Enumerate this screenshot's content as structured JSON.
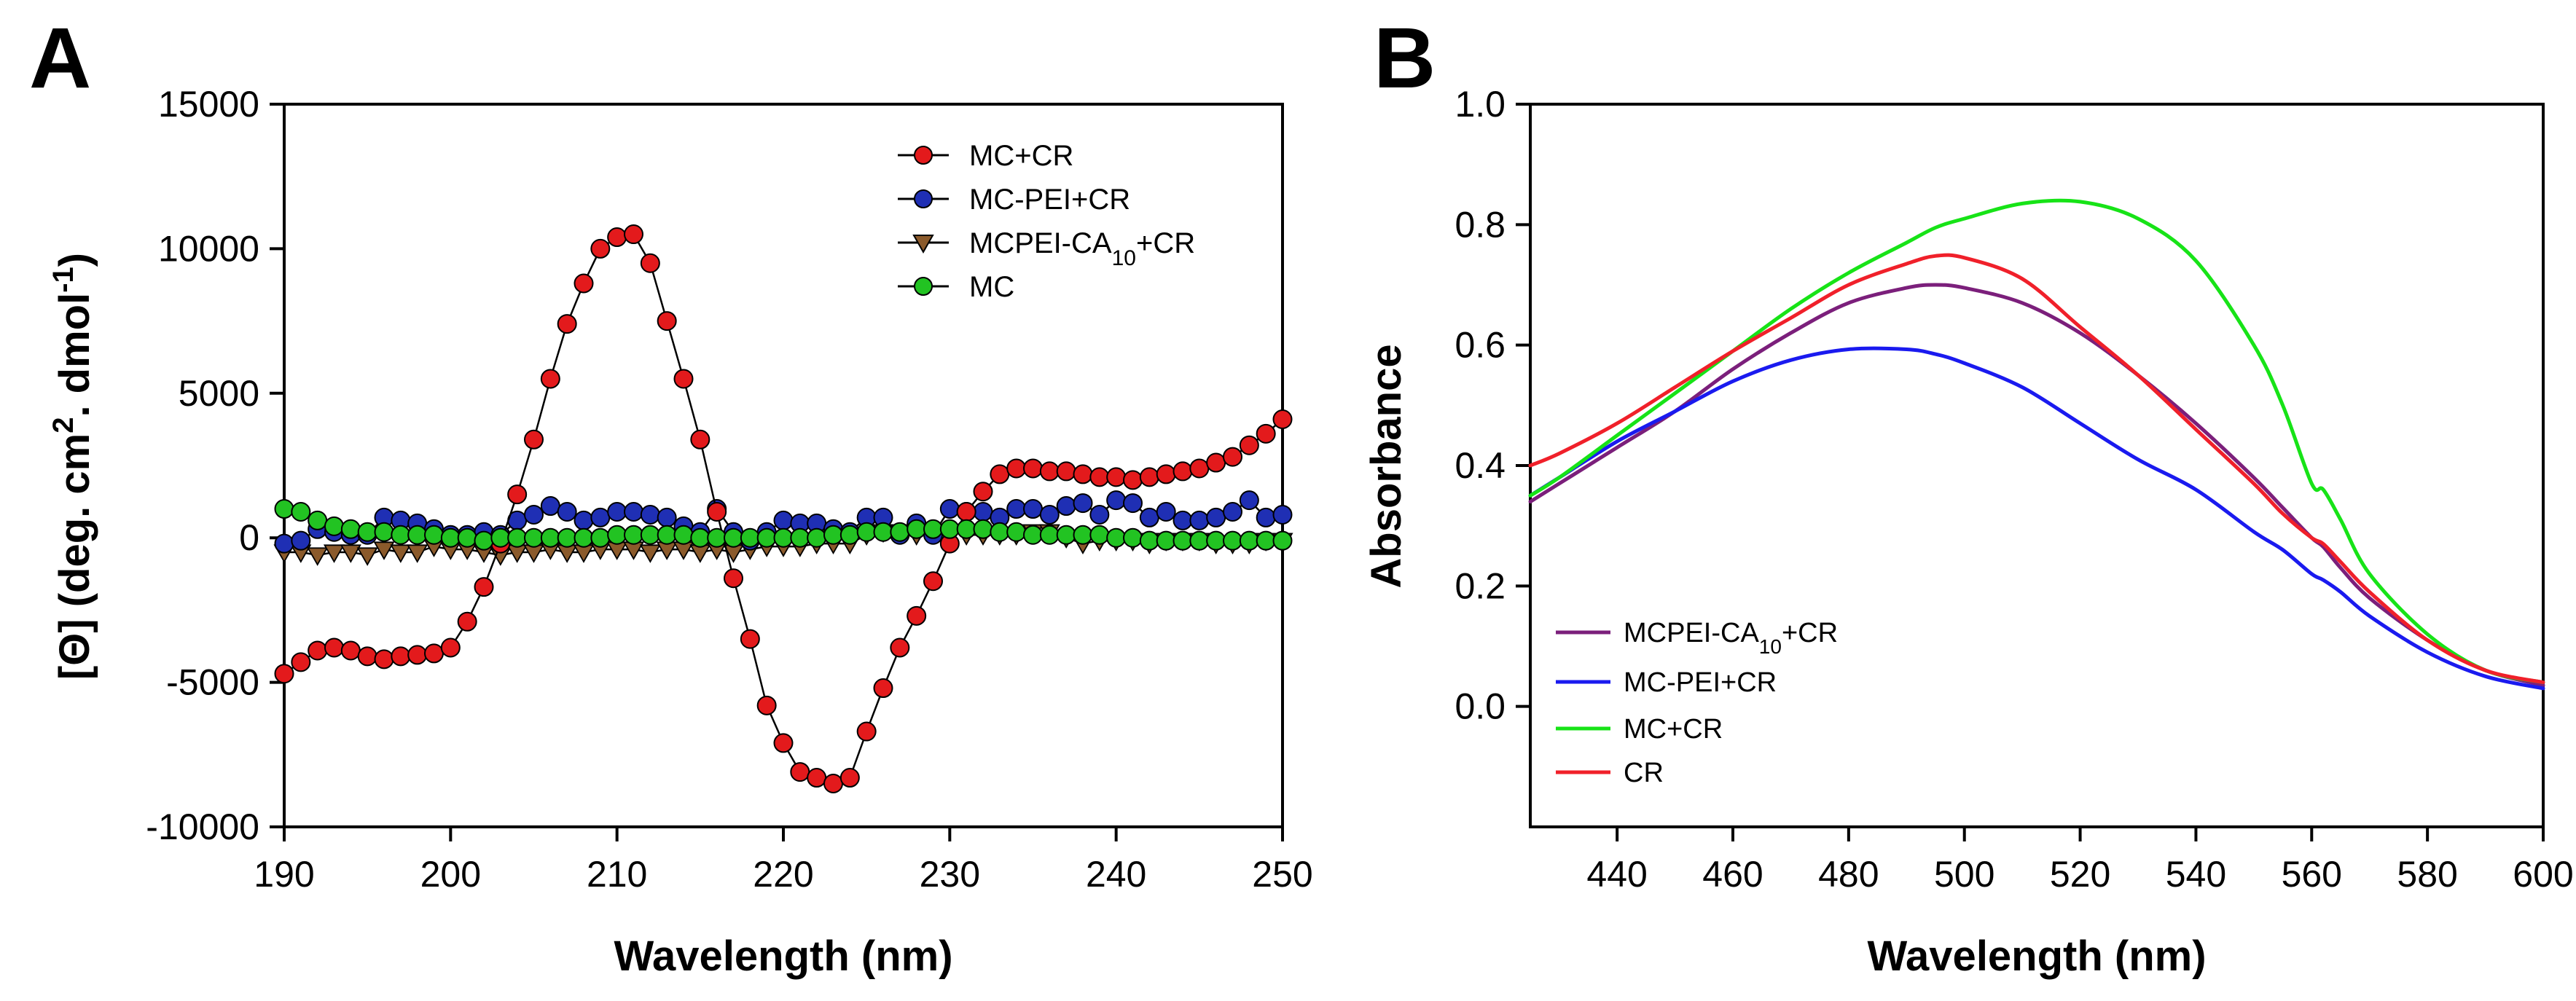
{
  "panels": [
    {
      "letter": "A",
      "chart_data": {
        "type": "line",
        "markers": true,
        "xlabel": "Wavelength (nm)",
        "ylabel": "[Θ] (deg. cm2. dmol-1)",
        "ylabel_parts": {
          "main": "[Θ] (deg. cm",
          "sup1": "2",
          "mid": ". dmol",
          "sup2": "-1",
          "end": ")"
        },
        "xlim": [
          190,
          250
        ],
        "ylim": [
          -10000,
          15000
        ],
        "xticks": [
          190,
          200,
          210,
          220,
          230,
          240,
          250
        ],
        "yticks": [
          -10000,
          -5000,
          0,
          5000,
          10000,
          15000
        ],
        "legend_position": "top-right",
        "x": [
          190,
          191,
          192,
          193,
          194,
          195,
          196,
          197,
          198,
          199,
          200,
          201,
          202,
          203,
          204,
          205,
          206,
          207,
          208,
          209,
          210,
          211,
          212,
          213,
          214,
          215,
          216,
          217,
          218,
          219,
          220,
          221,
          222,
          223,
          224,
          225,
          226,
          227,
          228,
          229,
          230,
          231,
          232,
          233,
          234,
          235,
          236,
          237,
          238,
          239,
          240,
          241,
          242,
          243,
          244,
          245,
          246,
          247,
          248,
          249,
          250
        ],
        "series": [
          {
            "name": "MC+CR",
            "label_parts": {
              "main": "MC+CR",
              "sub": "",
              "end": ""
            },
            "color": "#e31a1c",
            "marker": "circle",
            "values": [
              -4700,
              -4300,
              -3900,
              -3800,
              -3900,
              -4100,
              -4200,
              -4100,
              -4050,
              -4000,
              -3800,
              -2900,
              -1700,
              -200,
              1500,
              3400,
              5500,
              7400,
              8800,
              10000,
              10400,
              10500,
              9500,
              7500,
              5500,
              3400,
              900,
              -1400,
              -3500,
              -5800,
              -7100,
              -8100,
              -8300,
              -8500,
              -8300,
              -6700,
              -5200,
              -3800,
              -2700,
              -1500,
              -200,
              900,
              1600,
              2200,
              2400,
              2400,
              2300,
              2300,
              2200,
              2100,
              2100,
              2000,
              2100,
              2200,
              2300,
              2400,
              2600,
              2800,
              3200,
              3600,
              4100
            ]
          },
          {
            "name": "MC-PEI+CR",
            "label_parts": {
              "main": "MC-PEI+CR",
              "sub": "",
              "end": ""
            },
            "color": "#1f2fb4",
            "marker": "circle",
            "values": [
              -200,
              -100,
              300,
              200,
              100,
              100,
              700,
              600,
              500,
              300,
              100,
              100,
              200,
              100,
              600,
              800,
              1100,
              900,
              600,
              700,
              900,
              900,
              800,
              700,
              400,
              200,
              1000,
              200,
              -100,
              200,
              600,
              500,
              500,
              300,
              200,
              700,
              700,
              100,
              500,
              100,
              1000,
              900,
              900,
              700,
              1000,
              1000,
              800,
              1100,
              1200,
              800,
              1300,
              1200,
              700,
              900,
              600,
              600,
              700,
              900,
              1300,
              700,
              800
            ]
          },
          {
            "name": "MCPEI-CA10+CR",
            "label_parts": {
              "main": "MCPEI-CA",
              "sub": "10",
              "end": "+CR"
            },
            "color": "#8b5a2b",
            "marker": "triangle-down",
            "values": [
              -500,
              -500,
              -600,
              -500,
              -500,
              -600,
              -400,
              -500,
              -500,
              -300,
              -400,
              -400,
              -500,
              -600,
              -500,
              -500,
              -400,
              -500,
              -500,
              -400,
              -400,
              -400,
              -500,
              -400,
              -400,
              -500,
              -400,
              -500,
              -400,
              -300,
              -300,
              -300,
              -200,
              -200,
              -200,
              100,
              200,
              200,
              100,
              200,
              200,
              100,
              100,
              100,
              100,
              200,
              200,
              0,
              -200,
              -100,
              -100,
              -100,
              -200,
              -100,
              -100,
              -100,
              -200,
              -200,
              -200,
              -100,
              -100
            ]
          },
          {
            "name": "MC",
            "label_parts": {
              "main": "MC",
              "sub": "",
              "end": ""
            },
            "color": "#22c322",
            "marker": "circle",
            "values": [
              1000,
              900,
              600,
              400,
              300,
              200,
              200,
              100,
              100,
              100,
              0,
              0,
              -100,
              0,
              0,
              0,
              0,
              0,
              0,
              0,
              100,
              100,
              100,
              100,
              100,
              0,
              0,
              0,
              0,
              0,
              0,
              0,
              0,
              100,
              100,
              200,
              200,
              200,
              300,
              300,
              300,
              300,
              300,
              200,
              200,
              100,
              100,
              100,
              100,
              100,
              0,
              0,
              -100,
              -100,
              -100,
              -100,
              -100,
              -100,
              -100,
              -100,
              -100
            ]
          }
        ]
      }
    },
    {
      "letter": "B",
      "chart_data": {
        "type": "line",
        "markers": false,
        "xlabel": "Wavelength (nm)",
        "ylabel": "Absorbance",
        "xlim": [
          425,
          600
        ],
        "ylim": [
          -0.2,
          1.0
        ],
        "xticks": [
          440,
          460,
          480,
          500,
          520,
          540,
          560,
          580,
          600
        ],
        "yticks": [
          0.0,
          0.2,
          0.4,
          0.6,
          0.8,
          1.0
        ],
        "ytick_labels": [
          "0.0",
          "0.2",
          "0.4",
          "0.6",
          "0.8",
          "1.0"
        ],
        "legend_position": "bottom-left",
        "x": [
          425,
          430,
          440,
          450,
          460,
          470,
          480,
          490,
          495,
          500,
          510,
          520,
          530,
          540,
          550,
          555,
          560,
          562,
          565,
          570,
          580,
          590,
          600
        ],
        "series": [
          {
            "name": "MCPEI-CA10+CR",
            "label_parts": {
              "main": "MCPEI-CA",
              "sub": "10",
              "end": "+CR"
            },
            "color": "#7b1f7b",
            "values": [
              0.34,
              0.37,
              0.43,
              0.49,
              0.56,
              0.62,
              0.67,
              0.695,
              0.7,
              0.695,
              0.67,
              0.62,
              0.55,
              0.47,
              0.38,
              0.33,
              0.28,
              0.265,
              0.23,
              0.18,
              0.11,
              0.06,
              0.035
            ]
          },
          {
            "name": "MC-PEI+CR",
            "label_parts": {
              "main": "MC-PEI+CR",
              "sub": "",
              "end": ""
            },
            "color": "#1a1aef",
            "values": [
              0.35,
              0.38,
              0.44,
              0.49,
              0.54,
              0.575,
              0.593,
              0.593,
              0.585,
              0.57,
              0.53,
              0.47,
              0.41,
              0.36,
              0.29,
              0.26,
              0.22,
              0.21,
              0.19,
              0.15,
              0.09,
              0.05,
              0.03
            ]
          },
          {
            "name": "MC+CR",
            "label_parts": {
              "main": "MC+CR",
              "sub": "",
              "end": ""
            },
            "color": "#17e317",
            "values": [
              0.35,
              0.38,
              0.45,
              0.52,
              0.59,
              0.66,
              0.72,
              0.77,
              0.795,
              0.81,
              0.835,
              0.838,
              0.81,
              0.74,
              0.6,
              0.5,
              0.37,
              0.36,
              0.31,
              0.22,
              0.12,
              0.06,
              0.04
            ]
          },
          {
            "name": "CR",
            "label_parts": {
              "main": "CR",
              "sub": "",
              "end": ""
            },
            "color": "#f0202a",
            "values": [
              0.4,
              0.42,
              0.47,
              0.53,
              0.59,
              0.645,
              0.7,
              0.735,
              0.748,
              0.745,
              0.71,
              0.63,
              0.55,
              0.46,
              0.37,
              0.32,
              0.28,
              0.27,
              0.24,
              0.19,
              0.11,
              0.06,
              0.04
            ]
          }
        ]
      }
    }
  ]
}
